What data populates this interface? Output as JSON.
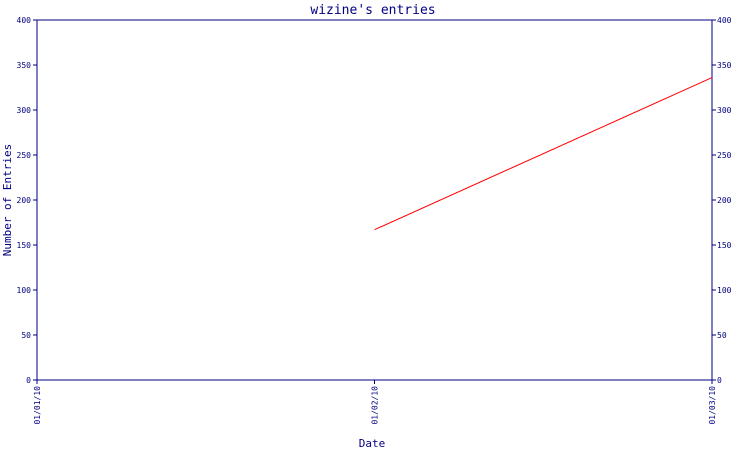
{
  "chart_data": {
    "type": "line",
    "title": "wizine's entries",
    "xlabel": "Date",
    "ylabel": "Number of Entries",
    "x_ticks": [
      "01/01/10",
      "01/02/10",
      "01/03/10"
    ],
    "y_ticks": [
      "0",
      "50",
      "100",
      "150",
      "200",
      "250",
      "300",
      "350",
      "400"
    ],
    "ylim": [
      0,
      400
    ],
    "xlim": [
      "01/01/10",
      "01/03/10"
    ],
    "grid": false,
    "series": [
      {
        "color": "#ff0000",
        "points": [
          {
            "x": "01/02/10",
            "y": 167
          },
          {
            "x": "01/03/10",
            "y": 336
          }
        ]
      }
    ],
    "colors": {
      "axis": "#000080",
      "text": "#000080",
      "background": "#ffffff"
    }
  }
}
